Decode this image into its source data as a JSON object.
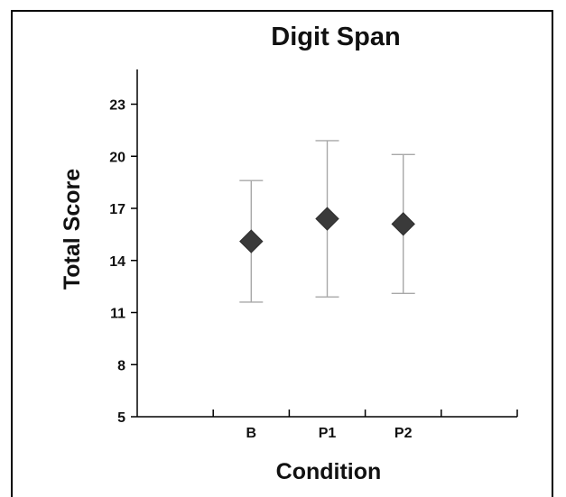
{
  "chart_data": {
    "type": "scatter",
    "title": "Digit Span",
    "xlabel": "Condition",
    "ylabel": "Total Score",
    "categories": [
      "B",
      "P1",
      "P2"
    ],
    "series": [
      {
        "values": [
          15.1,
          16.4,
          16.1
        ],
        "error_low": [
          11.6,
          11.9,
          12.1
        ],
        "error_high": [
          18.6,
          20.9,
          20.1
        ]
      }
    ],
    "yticks": [
      "5",
      "8",
      "11",
      "14",
      "17",
      "20",
      "23"
    ],
    "ylim": [
      5,
      25
    ],
    "grid": false,
    "marker": "diamond",
    "colors": {
      "marker": "#3a3a3a",
      "errorbar": "#a8a8a8",
      "axis": "#000000"
    }
  }
}
